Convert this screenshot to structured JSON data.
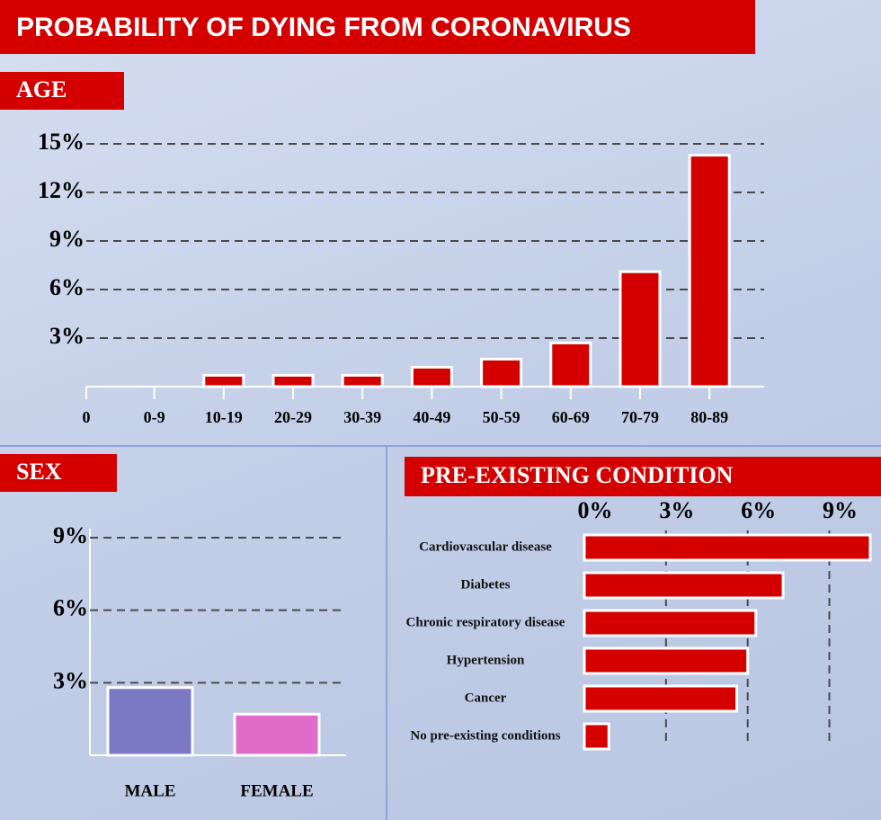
{
  "title": "PROBABILITY OF DYING FROM CORONAVIRUS",
  "chart_data": [
    {
      "type": "bar",
      "title": "AGE",
      "categories": [
        "0-9",
        "10-19",
        "20-29",
        "30-39",
        "40-49",
        "50-59",
        "60-69",
        "70-79",
        "80-89"
      ],
      "values": [
        0,
        0.7,
        0.7,
        0.7,
        1.2,
        1.7,
        2.7,
        7.1,
        14.3
      ],
      "color": "#d40000",
      "ylim": [
        0,
        15
      ],
      "yticks": [
        0,
        {
          "value": 3,
          "label": "3%"
        },
        {
          "value": 6,
          "label": "6%"
        },
        {
          "value": 9,
          "label": "9%"
        },
        {
          "value": 12,
          "label": "12%"
        },
        {
          "value": 15,
          "label": "15%"
        }
      ],
      "grid": true
    },
    {
      "type": "bar",
      "title": "SEX",
      "categories": [
        "MALE",
        "FEMALE"
      ],
      "values": [
        2.8,
        1.7
      ],
      "colors": [
        "#7b78c4",
        "#df6cc9"
      ],
      "ylim": [
        0,
        9
      ],
      "yticks": [
        {
          "value": 3,
          "label": "3%"
        },
        {
          "value": 6,
          "label": "6%"
        },
        {
          "value": 9,
          "label": "9%"
        }
      ],
      "grid": true
    },
    {
      "type": "barh",
      "title": "PRE-EXISTING CONDITION",
      "categories": [
        "Cardiovascular disease",
        "Diabetes",
        "Chronic respiratory disease",
        "Hypertension",
        "Cancer",
        "No pre-existing conditions"
      ],
      "values": [
        10.5,
        7.3,
        6.3,
        6.0,
        5.6,
        0.9
      ],
      "color": "#d40000",
      "xlim": [
        0,
        10.6
      ],
      "xticks": [
        {
          "value": 0,
          "label": "0%"
        },
        {
          "value": 3,
          "label": "3%"
        },
        {
          "value": 6,
          "label": "6%"
        },
        {
          "value": 9,
          "label": "9%"
        }
      ],
      "grid": true
    }
  ]
}
